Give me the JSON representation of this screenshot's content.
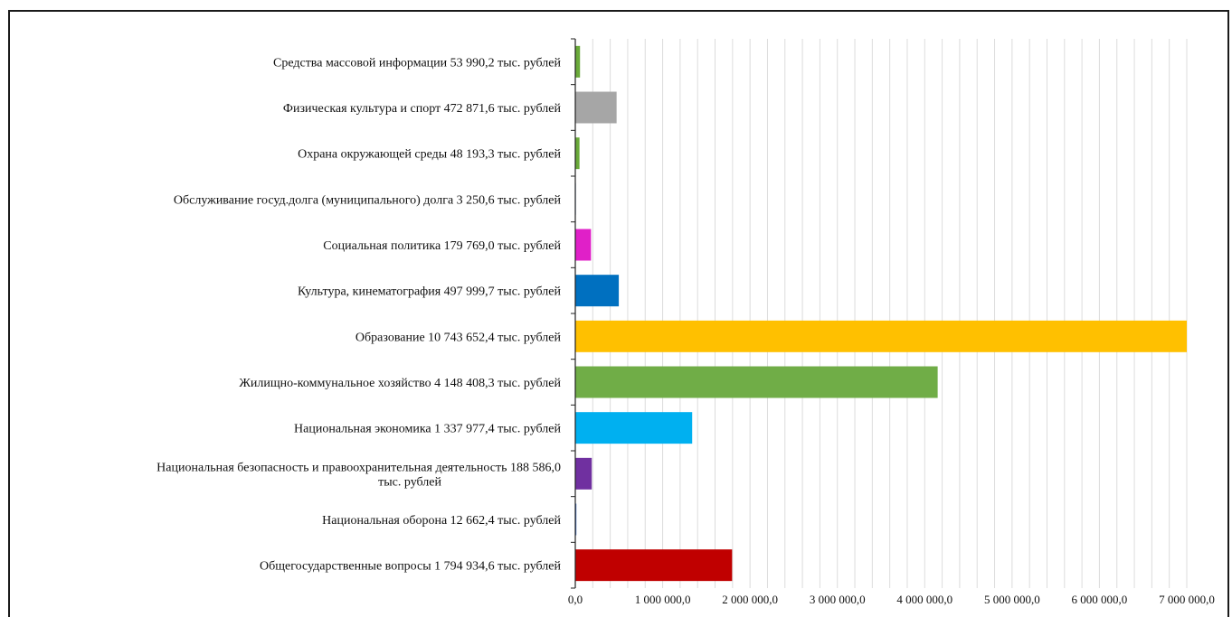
{
  "chart_data": {
    "type": "bar",
    "orientation": "horizontal",
    "title": "",
    "xlabel": "",
    "ylabel": "",
    "grid": "vertical minor gridlines",
    "legend": "none",
    "xlim": [
      0,
      7000000
    ],
    "x_ticks": [
      "0,0",
      "1 000 000,0",
      "2 000 000,0",
      "3 000 000,0",
      "4 000 000,0",
      "5 000 000,0",
      "6 000 000,0",
      "7 000 000,0"
    ],
    "categories": [
      {
        "lines": [
          "Средства массовой информации  53 990,2  тыс. рублей"
        ],
        "value": 53990.2,
        "color": "#6aaa3a"
      },
      {
        "lines": [
          "Физическая культура и спорт 472 871,6  тыс. рублей"
        ],
        "value": 472871.6,
        "color": "#a6a6a6"
      },
      {
        "lines": [
          "Охрана  окружающей среды 48 193,3  тыс. рублей"
        ],
        "value": 48193.3,
        "color": "#6aaa3a"
      },
      {
        "lines": [
          "Обслуживание госуд.долга (муниципального)  долга 3 250,6  тыс. рублей"
        ],
        "value": 3250.6,
        "color": "#4472c4"
      },
      {
        "lines": [
          "Социальная политика  179 769,0  тыс. рублей"
        ],
        "value": 179769.0,
        "color": "#e020c8"
      },
      {
        "lines": [
          "Культура, кинематография 497 999,7  тыс. рублей"
        ],
        "value": 497999.7,
        "color": "#0070c0"
      },
      {
        "lines": [
          "Образование 10 743 652,4  тыс. рублей"
        ],
        "value": 10743652.4,
        "color": "#ffc000"
      },
      {
        "lines": [
          "Жилищно-коммунальное  хозяйство 4 148 408,3  тыс. рублей"
        ],
        "value": 4148408.3,
        "color": "#70ad47"
      },
      {
        "lines": [
          "Национальная экономика  1 337 977,4  тыс. рублей"
        ],
        "value": 1337977.4,
        "color": "#00b0f0"
      },
      {
        "lines": [
          "Национальная безопасность и правоохранительная деятельность 188 586,0",
          "тыс. рублей"
        ],
        "value": 188586.0,
        "color": "#7030a0"
      },
      {
        "lines": [
          "Национальная оборона 12 662,4  тыс. рублей"
        ],
        "value": 12662.4,
        "color": "#4472c4"
      },
      {
        "lines": [
          "Общегосударственные вопросы 1 794 934,6  тыс. рублей"
        ],
        "value": 1794934.6,
        "color": "#c00000"
      }
    ]
  }
}
